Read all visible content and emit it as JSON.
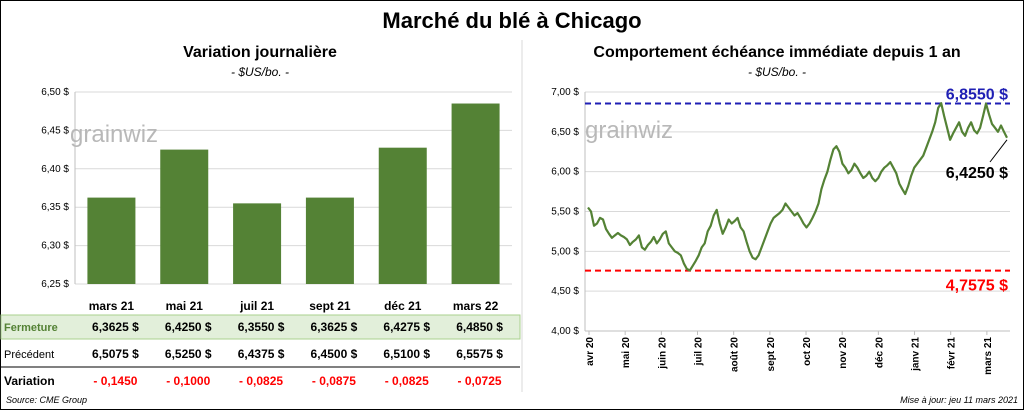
{
  "title": "Marché du blé à Chicago",
  "watermark": "grainwiz",
  "source": "Source: CME Group",
  "update": "Mise à jour: jeu 11 mars 2021",
  "colors": {
    "bar": "#548235",
    "line": "#548235",
    "high": "#1f1fb4",
    "low": "#ff0000",
    "neg": "#ff0000",
    "row_fill": "#e2efda"
  },
  "chart_data": [
    {
      "type": "bar",
      "title": "Variation journalière",
      "unit": "- $US/bo. -",
      "categories": [
        "mars 21",
        "mai 21",
        "juil 21",
        "sept 21",
        "déc 21",
        "mars 22"
      ],
      "values": [
        6.3625,
        6.425,
        6.355,
        6.3625,
        6.4275,
        6.485
      ],
      "ylim": [
        6.25,
        6.5
      ],
      "yticks": [
        "6,25 $",
        "6,30 $",
        "6,35 $",
        "6,40 $",
        "6,45 $",
        "6,50 $"
      ],
      "grid": true,
      "table": {
        "rows": [
          {
            "label": "Fermeture",
            "values": [
              "6,3625  $",
              "6,4250  $",
              "6,3550  $",
              "6,3625  $",
              "6,4275  $",
              "6,4850  $"
            ]
          },
          {
            "label": "Précédent",
            "values": [
              "6,5075  $",
              "6,5250  $",
              "6,4375  $",
              "6,4500  $",
              "6,5100  $",
              "6,5575  $"
            ]
          },
          {
            "label": "Variation",
            "values": [
              "- 0,1450",
              "- 0,1000",
              "- 0,0825",
              "- 0,0875",
              "- 0,0825",
              "- 0,0725"
            ]
          }
        ]
      }
    },
    {
      "type": "line",
      "title": "Comportement échéance immédiate depuis 1 an",
      "unit": "- $US/bo. -",
      "ylim": [
        4.0,
        7.0
      ],
      "yticks": [
        "4,00 $",
        "4,50 $",
        "5,00 $",
        "5,50 $",
        "6,00 $",
        "6,50 $",
        "7,00 $"
      ],
      "xticks": [
        "avr 20",
        "mai 20",
        "juin 20",
        "juil 20",
        "août 20",
        "sept 20",
        "oct 20",
        "nov 20",
        "déc 20",
        "janv 21",
        "févr 21",
        "mars 21"
      ],
      "grid": true,
      "high": {
        "value": 6.855,
        "label": "6,8550 $"
      },
      "low": {
        "value": 4.7575,
        "label": "4,7575 $"
      },
      "last": {
        "value": 6.425,
        "label": "6,4250 $"
      },
      "series": [
        {
          "values": [
            5.55,
            5.5,
            5.32,
            5.35,
            5.42,
            5.4,
            5.28,
            5.22,
            5.17,
            5.2,
            5.23,
            5.2,
            5.18,
            5.15,
            5.08,
            5.12,
            5.15,
            5.2,
            5.05,
            5.02,
            5.08,
            5.12,
            5.18,
            5.1,
            5.15,
            5.22,
            5.25,
            5.1,
            5.05,
            5.0,
            4.98,
            4.95,
            4.85,
            4.78,
            4.76,
            4.82,
            4.88,
            4.95,
            5.05,
            5.1,
            5.25,
            5.32,
            5.45,
            5.52,
            5.35,
            5.22,
            5.3,
            5.4,
            5.35,
            5.38,
            5.42,
            5.3,
            5.25,
            5.12,
            5.0,
            4.92,
            4.9,
            4.95,
            5.05,
            5.15,
            5.25,
            5.35,
            5.42,
            5.45,
            5.48,
            5.52,
            5.6,
            5.55,
            5.5,
            5.45,
            5.48,
            5.42,
            5.35,
            5.3,
            5.35,
            5.42,
            5.5,
            5.6,
            5.78,
            5.9,
            6.0,
            6.15,
            6.28,
            6.32,
            6.25,
            6.1,
            6.05,
            5.98,
            6.02,
            6.1,
            6.05,
            5.98,
            5.92,
            5.95,
            6.0,
            5.92,
            5.88,
            5.92,
            6.0,
            6.05,
            6.08,
            6.12,
            6.05,
            5.98,
            5.85,
            5.78,
            5.72,
            5.82,
            5.95,
            6.05,
            6.1,
            6.15,
            6.2,
            6.3,
            6.4,
            6.5,
            6.62,
            6.8,
            6.86,
            6.7,
            6.55,
            6.4,
            6.48,
            6.55,
            6.62,
            6.5,
            6.45,
            6.55,
            6.62,
            6.52,
            6.48,
            6.55,
            6.7,
            6.855,
            6.72,
            6.6,
            6.55,
            6.5,
            6.58,
            6.5,
            6.425
          ]
        }
      ]
    }
  ]
}
